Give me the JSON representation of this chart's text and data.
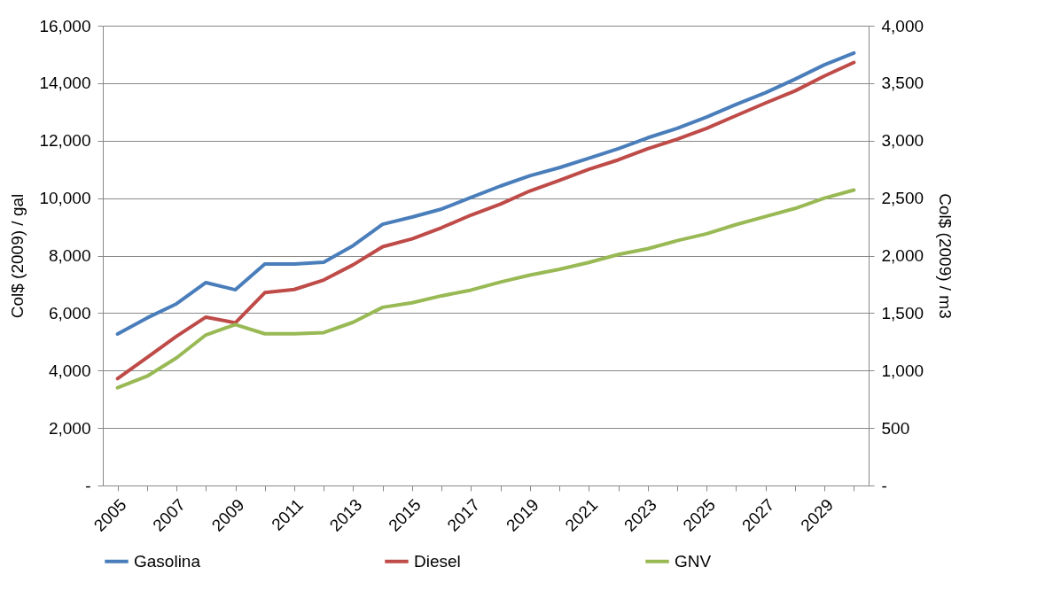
{
  "chart_data": {
    "type": "line",
    "ylabel": "Col$ (2009)  /  gal",
    "y2label": "Col$ (2009)  /  m3",
    "categories": [
      "2005",
      null,
      "2007",
      null,
      "2009",
      null,
      "2011",
      null,
      "2013",
      null,
      "2015",
      null,
      "2017",
      null,
      "2019",
      null,
      "2021",
      null,
      "2023",
      null,
      "2025",
      null,
      "2027",
      null,
      "2029",
      null
    ],
    "series": [
      {
        "name": "Gasolina",
        "color": "#4a7ebb",
        "values": [
          5270,
          5830,
          6320,
          7060,
          6810,
          7710,
          7710,
          7770,
          8350,
          9090,
          9340,
          9620,
          10020,
          10420,
          10780,
          11060,
          11390,
          11720,
          12100,
          12430,
          12820,
          13260,
          13670,
          14140,
          14640,
          15050
        ]
      },
      {
        "name": "Diesel",
        "color": "#be4b48",
        "values": [
          3720,
          4450,
          5190,
          5860,
          5660,
          6710,
          6820,
          7150,
          7680,
          8310,
          8580,
          8970,
          9410,
          9790,
          10250,
          10620,
          11000,
          11330,
          11720,
          12050,
          12430,
          12870,
          13310,
          13730,
          14250,
          14720
        ]
      },
      {
        "name": "GNV",
        "color": "#98b954",
        "axis": "y2",
        "values": [
          850,
          950,
          1110,
          1310,
          1400,
          1320,
          1320,
          1330,
          1420,
          1550,
          1590,
          1650,
          1700,
          1770,
          1830,
          1880,
          1940,
          2010,
          2060,
          2130,
          2190,
          2270,
          2340,
          2410,
          2500,
          2570
        ]
      }
    ],
    "ylim": [
      0,
      16000
    ],
    "yticks": [
      {
        "value": 0,
        "label": "-"
      },
      {
        "value": 2000,
        "label": "2,000"
      },
      {
        "value": 4000,
        "label": "4,000"
      },
      {
        "value": 6000,
        "label": "6,000"
      },
      {
        "value": 8000,
        "label": "8,000"
      },
      {
        "value": 10000,
        "label": "10,000"
      },
      {
        "value": 12000,
        "label": "12,000"
      },
      {
        "value": 14000,
        "label": "14,000"
      },
      {
        "value": 16000,
        "label": "16,000"
      }
    ],
    "y2lim": [
      0,
      4000
    ],
    "y2ticks": [
      {
        "value": 0,
        "label": "-"
      },
      {
        "value": 500,
        "label": "500"
      },
      {
        "value": 1000,
        "label": "1,000"
      },
      {
        "value": 1500,
        "label": "1,500"
      },
      {
        "value": 2000,
        "label": "2,000"
      },
      {
        "value": 2500,
        "label": "2,500"
      },
      {
        "value": 3000,
        "label": "3,000"
      },
      {
        "value": 3500,
        "label": "3,500"
      },
      {
        "value": 4000,
        "label": "4,000"
      }
    ],
    "grid": "y",
    "legend": "bottom",
    "marker": "none",
    "line_style": "solid"
  }
}
